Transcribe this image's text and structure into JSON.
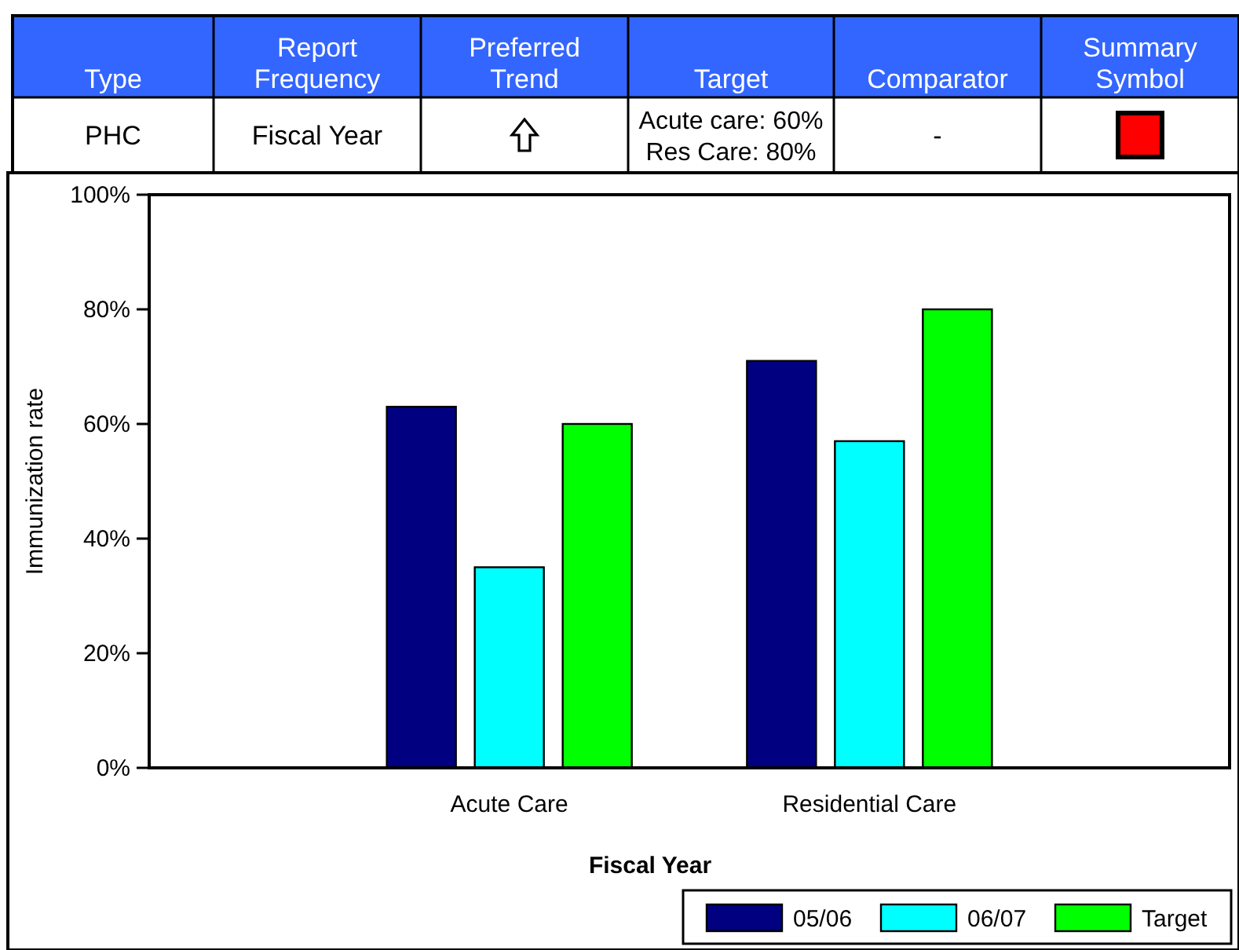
{
  "chart_data": [
    {
      "type": "other",
      "categories": [
        "Type",
        "Report Frequency",
        "Preferred Trend",
        "Target",
        "Comparator",
        "Summary Symbol"
      ],
      "annotations": [
        "PHC",
        "Fiscal Year",
        "Acute care: 60%",
        "Res Care: 80%",
        "-"
      ]
    },
    {
      "type": "bar",
      "xlabel": "Fiscal Year",
      "ylabel": "Immunization rate",
      "categories": [
        "Acute Care",
        "Residential Care"
      ],
      "series": [
        {
          "name": "05/06",
          "color": "#000080",
          "values": [
            63,
            71
          ]
        },
        {
          "name": "06/07",
          "color": "#00ffff",
          "values": [
            35,
            57
          ]
        },
        {
          "name": "Target",
          "color": "#00ff00",
          "values": [
            60,
            80
          ]
        }
      ],
      "ylim": [
        0,
        100
      ],
      "yticks": [
        {
          "value": 0,
          "label": "0%"
        },
        {
          "value": 20,
          "label": "20%"
        },
        {
          "value": 40,
          "label": "40%"
        },
        {
          "value": 60,
          "label": "60%"
        },
        {
          "value": 80,
          "label": "80%"
        },
        {
          "value": 100,
          "label": "100%"
        }
      ],
      "legend": "bottom right",
      "grid": false
    }
  ]
}
